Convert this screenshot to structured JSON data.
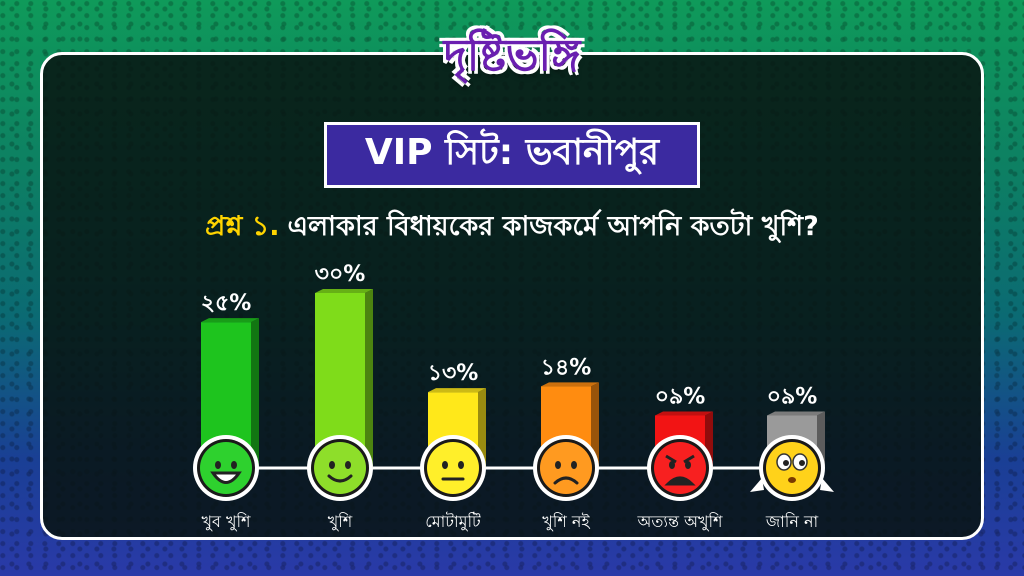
{
  "brand": {
    "logo_text": "দৃষ্টিভঙ্গি"
  },
  "title": "VIP সিট: ভবানীপুর",
  "question": {
    "number": "প্রশ্ন ১.",
    "text": "এলাকার বিধায়কের কাজকর্মে আপনি কতটা খুশি?"
  },
  "colors": {
    "bars": [
      "#1ec41e",
      "#7fdc1a",
      "#ffe81a",
      "#ff8c10",
      "#f21414",
      "#9a9a9a"
    ],
    "face": [
      "#2ed12e",
      "#8ede2a",
      "#ffef2a",
      "#ff9a20",
      "#f82020",
      "#ffd21a"
    ]
  },
  "icons": [
    "very-happy-face-icon",
    "happy-face-icon",
    "neutral-face-icon",
    "sad-face-icon",
    "angry-face-icon",
    "confused-face-icon"
  ],
  "chart_data": {
    "type": "bar",
    "categories": [
      "খুব খুশি",
      "খুশি",
      "মোটামুটি",
      "খুশি নই",
      "অত্যন্ত অখুশি",
      "জানি না"
    ],
    "values": [
      25,
      30,
      13,
      14,
      9,
      9
    ],
    "value_labels": [
      "২৫%",
      "৩০%",
      "১৩%",
      "১৪%",
      "০৯%",
      "০৯%"
    ],
    "ylim": [
      0,
      30
    ]
  }
}
